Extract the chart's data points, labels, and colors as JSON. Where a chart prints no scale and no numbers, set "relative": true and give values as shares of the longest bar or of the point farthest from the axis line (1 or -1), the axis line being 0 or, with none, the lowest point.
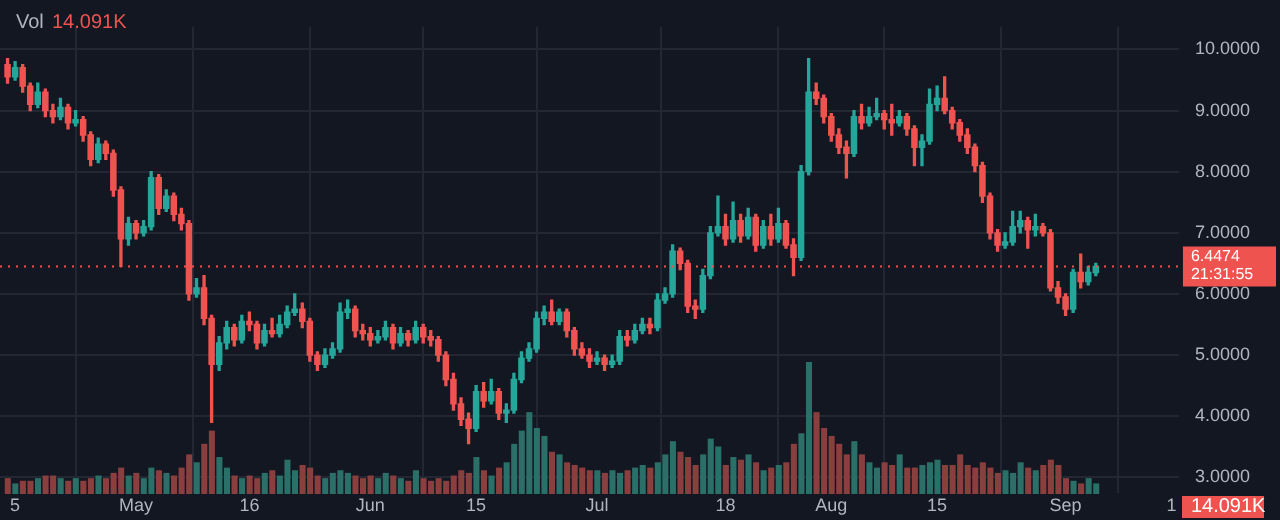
{
  "chart_data": [
    {
      "type": "candlestick",
      "x": [
        "--04-14",
        "--04-15",
        "--04-16",
        "--04-17",
        "--04-18",
        "--04-19",
        "--04-20",
        "--04-21",
        "--04-22",
        "--04-23",
        "--04-24",
        "--04-25",
        "--04-26",
        "--04-27",
        "--04-28",
        "--04-29",
        "--04-30",
        "--05-01",
        "--05-02",
        "--05-03",
        "--05-04",
        "--05-05",
        "--05-06",
        "--05-07",
        "--05-08",
        "--05-09",
        "--05-10",
        "--05-11",
        "--05-12",
        "--05-13",
        "--05-14",
        "--05-15",
        "--05-16",
        "--05-17",
        "--05-18",
        "--05-19",
        "--05-20",
        "--05-21",
        "--05-22",
        "--05-23",
        "--05-24",
        "--05-25",
        "--05-26",
        "--05-27",
        "--05-28",
        "--05-29",
        "--05-30",
        "--05-31",
        "--06-01",
        "--06-02",
        "--06-03",
        "--06-04",
        "--06-05",
        "--06-06",
        "--06-07",
        "--06-08",
        "--06-09",
        "--06-10",
        "--06-11",
        "--06-12",
        "--06-13",
        "--06-14",
        "--06-15",
        "--06-16",
        "--06-17",
        "--06-18",
        "--06-19",
        "--06-20",
        "--06-21",
        "--06-22",
        "--06-23",
        "--06-24",
        "--06-25",
        "--06-26",
        "--06-27",
        "--06-28",
        "--06-29",
        "--06-30",
        "--07-01",
        "--07-02",
        "--07-03",
        "--07-04",
        "--07-05",
        "--07-06",
        "--07-07",
        "--07-08",
        "--07-09",
        "--07-10",
        "--07-11",
        "--07-12",
        "--07-13",
        "--07-14",
        "--07-15",
        "--07-16",
        "--07-17",
        "--07-18",
        "--07-19",
        "--07-20",
        "--07-21",
        "--07-22",
        "--07-23",
        "--07-24",
        "--07-25",
        "--07-26",
        "--07-27",
        "--07-28",
        "--07-29",
        "--07-30",
        "--07-31",
        "--08-01",
        "--08-02",
        "--08-03",
        "--08-04",
        "--08-05",
        "--08-06",
        "--08-07",
        "--08-08",
        "--08-09",
        "--08-10",
        "--08-11",
        "--08-12",
        "--08-13",
        "--08-14",
        "--08-15",
        "--08-16",
        "--08-17",
        "--08-18",
        "--08-19",
        "--08-20",
        "--08-21",
        "--08-22",
        "--08-23",
        "--08-24",
        "--08-25",
        "--08-26",
        "--08-27",
        "--08-28",
        "--08-29",
        "--08-30",
        "--08-31",
        "--09-01",
        "--09-02",
        "--09-03",
        "--09-04",
        "--09-05"
      ],
      "ohlc": [
        [
          9.75,
          9.85,
          9.45,
          9.55
        ],
        [
          9.55,
          9.8,
          9.5,
          9.7
        ],
        [
          9.7,
          9.75,
          9.3,
          9.4
        ],
        [
          9.4,
          9.45,
          9.0,
          9.1
        ],
        [
          9.1,
          9.45,
          9.05,
          9.3
        ],
        [
          9.3,
          9.35,
          8.9,
          9.0
        ],
        [
          9.0,
          9.1,
          8.8,
          8.9
        ],
        [
          8.9,
          9.2,
          8.85,
          9.05
        ],
        [
          9.05,
          9.1,
          8.7,
          8.8
        ],
        [
          8.8,
          9.0,
          8.75,
          8.85
        ],
        [
          8.85,
          8.9,
          8.5,
          8.6
        ],
        [
          8.6,
          8.65,
          8.1,
          8.2
        ],
        [
          8.2,
          8.55,
          8.15,
          8.45
        ],
        [
          8.45,
          8.5,
          8.2,
          8.3
        ],
        [
          8.3,
          8.35,
          7.6,
          7.7
        ],
        [
          7.7,
          7.75,
          6.45,
          6.9
        ],
        [
          6.9,
          7.25,
          6.8,
          7.15
        ],
        [
          7.15,
          7.2,
          6.9,
          7.0
        ],
        [
          7.0,
          7.2,
          6.95,
          7.1
        ],
        [
          7.1,
          8.0,
          7.05,
          7.9
        ],
        [
          7.9,
          7.95,
          7.3,
          7.4
        ],
        [
          7.4,
          7.7,
          7.35,
          7.6
        ],
        [
          7.6,
          7.65,
          7.2,
          7.3
        ],
        [
          7.3,
          7.4,
          7.05,
          7.15
        ],
        [
          7.15,
          7.2,
          5.9,
          6.0
        ],
        [
          6.0,
          6.25,
          5.95,
          6.1
        ],
        [
          6.1,
          6.3,
          5.5,
          5.6
        ],
        [
          5.6,
          5.65,
          3.9,
          4.85
        ],
        [
          4.85,
          5.3,
          4.75,
          5.2
        ],
        [
          5.2,
          5.55,
          5.1,
          5.45
        ],
        [
          5.45,
          5.5,
          5.15,
          5.25
        ],
        [
          5.25,
          5.65,
          5.2,
          5.55
        ],
        [
          5.55,
          5.7,
          5.4,
          5.5
        ],
        [
          5.5,
          5.55,
          5.1,
          5.2
        ],
        [
          5.2,
          5.5,
          5.15,
          5.4
        ],
        [
          5.4,
          5.6,
          5.3,
          5.35
        ],
        [
          5.35,
          5.65,
          5.3,
          5.5
        ],
        [
          5.5,
          5.8,
          5.45,
          5.7
        ],
        [
          5.7,
          6.0,
          5.65,
          5.75
        ],
        [
          5.75,
          5.85,
          5.45,
          5.55
        ],
        [
          5.55,
          5.6,
          4.9,
          5.0
        ],
        [
          5.0,
          5.05,
          4.75,
          4.85
        ],
        [
          4.85,
          5.1,
          4.8,
          5.0
        ],
        [
          5.0,
          5.2,
          4.95,
          5.1
        ],
        [
          5.1,
          5.85,
          5.05,
          5.7
        ],
        [
          5.7,
          5.9,
          5.6,
          5.75
        ],
        [
          5.75,
          5.8,
          5.3,
          5.4
        ],
        [
          5.4,
          5.5,
          5.25,
          5.35
        ],
        [
          5.35,
          5.45,
          5.15,
          5.25
        ],
        [
          5.25,
          5.4,
          5.2,
          5.3
        ],
        [
          5.3,
          5.55,
          5.25,
          5.45
        ],
        [
          5.45,
          5.5,
          5.1,
          5.2
        ],
        [
          5.2,
          5.45,
          5.15,
          5.35
        ],
        [
          5.35,
          5.4,
          5.15,
          5.25
        ],
        [
          5.25,
          5.55,
          5.2,
          5.45
        ],
        [
          5.45,
          5.5,
          5.2,
          5.3
        ],
        [
          5.3,
          5.4,
          5.15,
          5.25
        ],
        [
          5.25,
          5.3,
          4.9,
          5.0
        ],
        [
          5.0,
          5.05,
          4.5,
          4.6
        ],
        [
          4.6,
          4.7,
          4.1,
          4.2
        ],
        [
          4.2,
          4.3,
          3.85,
          3.95
        ],
        [
          3.95,
          4.05,
          3.55,
          3.8
        ],
        [
          3.8,
          4.5,
          3.75,
          4.4
        ],
        [
          4.4,
          4.55,
          4.15,
          4.25
        ],
        [
          4.25,
          4.6,
          4.2,
          4.4
        ],
        [
          4.4,
          4.45,
          3.95,
          4.05
        ],
        [
          4.05,
          4.2,
          3.9,
          4.1
        ],
        [
          4.1,
          4.7,
          4.05,
          4.6
        ],
        [
          4.6,
          5.05,
          4.55,
          4.95
        ],
        [
          4.95,
          5.2,
          4.9,
          5.1
        ],
        [
          5.1,
          5.7,
          5.05,
          5.6
        ],
        [
          5.6,
          5.8,
          5.5,
          5.7
        ],
        [
          5.7,
          5.9,
          5.5,
          5.55
        ],
        [
          5.55,
          5.75,
          5.5,
          5.7
        ],
        [
          5.7,
          5.75,
          5.3,
          5.4
        ],
        [
          5.4,
          5.45,
          5.0,
          5.1
        ],
        [
          5.1,
          5.2,
          4.95,
          5.0
        ],
        [
          5.0,
          5.1,
          4.8,
          4.9
        ],
        [
          4.9,
          5.05,
          4.85,
          4.95
        ],
        [
          4.95,
          5.0,
          4.75,
          4.85
        ],
        [
          4.85,
          5.0,
          4.8,
          4.9
        ],
        [
          4.9,
          5.4,
          4.85,
          5.3
        ],
        [
          5.3,
          5.4,
          5.15,
          5.25
        ],
        [
          5.25,
          5.5,
          5.2,
          5.4
        ],
        [
          5.4,
          5.6,
          5.35,
          5.5
        ],
        [
          5.5,
          5.6,
          5.35,
          5.45
        ],
        [
          5.45,
          6.0,
          5.4,
          5.9
        ],
        [
          5.9,
          6.1,
          5.85,
          6.0
        ],
        [
          6.0,
          6.8,
          5.95,
          6.7
        ],
        [
          6.7,
          6.75,
          6.4,
          6.5
        ],
        [
          6.5,
          6.55,
          5.7,
          5.8
        ],
        [
          5.8,
          5.9,
          5.6,
          5.75
        ],
        [
          5.75,
          6.4,
          5.7,
          6.3
        ],
        [
          6.3,
          7.1,
          6.25,
          7.0
        ],
        [
          7.0,
          7.6,
          6.95,
          7.1
        ],
        [
          7.1,
          7.3,
          6.8,
          6.9
        ],
        [
          6.9,
          7.5,
          6.85,
          7.2
        ],
        [
          7.2,
          7.3,
          6.85,
          6.95
        ],
        [
          6.95,
          7.4,
          6.9,
          7.25
        ],
        [
          7.25,
          7.3,
          6.7,
          6.8
        ],
        [
          6.8,
          7.2,
          6.75,
          7.1
        ],
        [
          7.1,
          7.3,
          6.8,
          6.9
        ],
        [
          6.9,
          7.4,
          6.85,
          7.15
        ],
        [
          7.15,
          7.2,
          6.75,
          6.8
        ],
        [
          6.8,
          6.9,
          6.3,
          6.6
        ],
        [
          6.6,
          8.1,
          6.55,
          8.0
        ],
        [
          8.0,
          9.85,
          7.95,
          9.3
        ],
        [
          9.3,
          9.45,
          9.1,
          9.2
        ],
        [
          9.2,
          9.25,
          8.8,
          8.9
        ],
        [
          8.9,
          8.95,
          8.5,
          8.6
        ],
        [
          8.6,
          8.7,
          8.3,
          8.4
        ],
        [
          8.4,
          8.5,
          7.9,
          8.3
        ],
        [
          8.3,
          9.0,
          8.25,
          8.9
        ],
        [
          8.9,
          9.1,
          8.7,
          8.8
        ],
        [
          8.8,
          9.05,
          8.75,
          8.9
        ],
        [
          8.9,
          9.2,
          8.85,
          8.95
        ],
        [
          8.95,
          9.0,
          8.7,
          8.85
        ],
        [
          8.85,
          9.1,
          8.6,
          8.8
        ],
        [
          8.8,
          9.0,
          8.75,
          8.9
        ],
        [
          8.9,
          8.95,
          8.6,
          8.7
        ],
        [
          8.7,
          8.75,
          8.1,
          8.4
        ],
        [
          8.4,
          8.6,
          8.1,
          8.5
        ],
        [
          8.5,
          9.35,
          8.45,
          9.1
        ],
        [
          9.1,
          9.4,
          9.0,
          9.2
        ],
        [
          9.2,
          9.55,
          8.95,
          9.0
        ],
        [
          9.0,
          9.05,
          8.7,
          8.8
        ],
        [
          8.8,
          8.85,
          8.5,
          8.6
        ],
        [
          8.6,
          8.7,
          8.3,
          8.4
        ],
        [
          8.4,
          8.45,
          8.0,
          8.1
        ],
        [
          8.1,
          8.15,
          7.5,
          7.6
        ],
        [
          7.6,
          7.65,
          6.9,
          7.0
        ],
        [
          7.0,
          7.05,
          6.7,
          6.8
        ],
        [
          6.8,
          7.0,
          6.75,
          6.85
        ],
        [
          6.85,
          7.35,
          6.8,
          7.1
        ],
        [
          7.1,
          7.35,
          7.0,
          7.2
        ],
        [
          7.2,
          7.25,
          6.75,
          7.05
        ],
        [
          7.05,
          7.3,
          6.95,
          7.1
        ],
        [
          7.1,
          7.15,
          6.95,
          7.0
        ],
        [
          7.0,
          7.05,
          6.05,
          6.1
        ],
        [
          6.1,
          6.2,
          5.85,
          5.95
        ],
        [
          5.95,
          6.0,
          5.65,
          5.75
        ],
        [
          5.75,
          6.4,
          5.7,
          6.35
        ],
        [
          6.35,
          6.65,
          6.1,
          6.2
        ],
        [
          6.2,
          6.45,
          6.15,
          6.35
        ],
        [
          6.35,
          6.5,
          6.3,
          6.45
        ]
      ],
      "colors": [
        "#ef5350",
        "#26a69a",
        "#ef5350",
        "#ef5350",
        "#26a69a",
        "#ef5350",
        "#ef5350",
        "#26a69a",
        "#ef5350",
        "#26a69a",
        "#ef5350",
        "#ef5350",
        "#26a69a",
        "#ef5350",
        "#ef5350",
        "#ef5350",
        "#26a69a",
        "#ef5350",
        "#26a69a",
        "#26a69a",
        "#ef5350",
        "#26a69a",
        "#ef5350",
        "#ef5350",
        "#ef5350",
        "#26a69a",
        "#ef5350",
        "#ef5350",
        "#26a69a",
        "#26a69a",
        "#ef5350",
        "#26a69a",
        "#ef5350",
        "#ef5350",
        "#26a69a",
        "#ef5350",
        "#26a69a",
        "#26a69a",
        "#26a69a",
        "#ef5350",
        "#ef5350",
        "#ef5350",
        "#26a69a",
        "#26a69a",
        "#26a69a",
        "#26a69a",
        "#ef5350",
        "#ef5350",
        "#ef5350",
        "#26a69a",
        "#26a69a",
        "#ef5350",
        "#26a69a",
        "#ef5350",
        "#26a69a",
        "#ef5350",
        "#ef5350",
        "#ef5350",
        "#ef5350",
        "#ef5350",
        "#ef5350",
        "#ef5350",
        "#26a69a",
        "#ef5350",
        "#26a69a",
        "#ef5350",
        "#26a69a",
        "#26a69a",
        "#26a69a",
        "#26a69a",
        "#26a69a",
        "#26a69a",
        "#ef5350",
        "#26a69a",
        "#ef5350",
        "#ef5350",
        "#ef5350",
        "#ef5350",
        "#26a69a",
        "#ef5350",
        "#26a69a",
        "#26a69a",
        "#ef5350",
        "#26a69a",
        "#26a69a",
        "#ef5350",
        "#26a69a",
        "#26a69a",
        "#26a69a",
        "#ef5350",
        "#ef5350",
        "#ef5350",
        "#26a69a",
        "#26a69a",
        "#26a69a",
        "#ef5350",
        "#26a69a",
        "#ef5350",
        "#26a69a",
        "#ef5350",
        "#26a69a",
        "#ef5350",
        "#26a69a",
        "#ef5350",
        "#ef5350",
        "#26a69a",
        "#26a69a",
        "#ef5350",
        "#ef5350",
        "#ef5350",
        "#ef5350",
        "#ef5350",
        "#26a69a",
        "#ef5350",
        "#26a69a",
        "#26a69a",
        "#ef5350",
        "#ef5350",
        "#26a69a",
        "#ef5350",
        "#ef5350",
        "#26a69a",
        "#26a69a",
        "#26a69a",
        "#ef5350",
        "#ef5350",
        "#ef5350",
        "#ef5350",
        "#ef5350",
        "#ef5350",
        "#ef5350",
        "#ef5350",
        "#26a69a",
        "#26a69a",
        "#26a69a",
        "#ef5350",
        "#26a69a",
        "#ef5350",
        "#ef5350",
        "#ef5350",
        "#ef5350",
        "#26a69a",
        "#ef5350",
        "#26a69a",
        "#26a69a"
      ],
      "xlim": [
        "--04-13",
        "--09-16"
      ],
      "xticks": [
        {
          "value": "--04-15",
          "label": "5"
        },
        {
          "value": "--05-01",
          "label": "May"
        },
        {
          "value": "--05-16",
          "label": "16"
        },
        {
          "value": "--06-01",
          "label": "Jun"
        },
        {
          "value": "--06-15",
          "label": "15"
        },
        {
          "value": "--07-01",
          "label": "Jul"
        },
        {
          "value": "--07-18",
          "label": "18"
        },
        {
          "value": "--08-01",
          "label": "Aug"
        },
        {
          "value": "--08-15",
          "label": "15"
        },
        {
          "value": "--09-01",
          "label": "Sep"
        },
        {
          "value": "--09-15",
          "label": "1"
        }
      ],
      "ylim": [
        2.74,
        10.37
      ],
      "yticks": [
        {
          "value": 3,
          "label": "3.0000"
        },
        {
          "value": 4,
          "label": "4.0000"
        },
        {
          "value": 5,
          "label": "5.0000"
        },
        {
          "value": 6,
          "label": "6.0000"
        },
        {
          "value": 7,
          "label": "7.0000"
        },
        {
          "value": 8,
          "label": "8.0000"
        },
        {
          "value": 9,
          "label": "9.0000"
        },
        {
          "value": 10,
          "label": "10.0000"
        }
      ],
      "grid": true,
      "legend": false,
      "ref_lines": [
        {
          "axis": "y",
          "value": 6.4474,
          "label": "6.4474",
          "color": "#ef5350",
          "line_style": "dotted"
        }
      ],
      "annotations": [
        "21:31:55"
      ]
    },
    {
      "type": "bar",
      "relative": true,
      "categories": [
        null,
        null,
        null,
        null,
        null,
        null,
        null,
        null,
        null,
        null,
        null,
        null,
        null,
        null,
        null,
        null,
        null,
        null,
        null,
        null,
        null,
        null,
        null,
        null,
        null,
        null,
        null,
        null,
        null,
        null,
        null,
        null,
        null,
        null,
        null,
        null,
        null,
        null,
        null,
        null,
        null,
        null,
        null,
        null,
        null,
        null,
        null,
        null,
        null,
        null,
        null,
        null,
        null,
        null,
        null,
        null,
        null,
        null,
        null,
        null,
        null,
        null,
        null,
        null,
        null,
        null,
        null,
        null,
        null,
        null,
        null,
        null,
        null,
        null,
        null,
        null,
        null,
        null,
        null,
        null,
        null,
        null,
        null,
        null,
        null,
        null,
        null,
        null,
        null,
        null,
        null,
        null,
        null,
        null,
        null,
        null,
        null,
        null,
        null,
        null,
        null,
        null,
        null,
        null,
        null,
        null,
        null,
        null,
        null,
        null,
        null,
        null,
        null,
        null,
        null,
        null,
        null,
        null,
        null,
        null,
        null,
        null,
        null,
        null,
        null,
        null,
        null,
        null,
        null,
        null,
        null,
        null,
        null,
        null,
        null,
        null,
        null,
        null,
        null,
        null,
        null,
        null,
        null,
        null,
        null
      ],
      "values": [
        0.12,
        0.08,
        0.1,
        0.1,
        0.12,
        0.14,
        0.14,
        0.12,
        0.1,
        0.12,
        0.1,
        0.12,
        0.14,
        0.12,
        0.16,
        0.2,
        0.14,
        0.16,
        0.12,
        0.2,
        0.18,
        0.16,
        0.14,
        0.2,
        0.3,
        0.24,
        0.38,
        0.48,
        0.28,
        0.2,
        0.14,
        0.12,
        0.14,
        0.12,
        0.16,
        0.18,
        0.14,
        0.26,
        0.18,
        0.22,
        0.2,
        0.14,
        0.12,
        0.16,
        0.18,
        0.16,
        0.14,
        0.12,
        0.14,
        0.12,
        0.16,
        0.14,
        0.12,
        0.1,
        0.18,
        0.12,
        0.1,
        0.12,
        0.1,
        0.14,
        0.18,
        0.16,
        0.28,
        0.18,
        0.14,
        0.2,
        0.24,
        0.38,
        0.48,
        0.62,
        0.5,
        0.44,
        0.32,
        0.3,
        0.24,
        0.22,
        0.2,
        0.18,
        0.18,
        0.16,
        0.18,
        0.16,
        0.18,
        0.2,
        0.22,
        0.2,
        0.24,
        0.3,
        0.4,
        0.32,
        0.28,
        0.22,
        0.3,
        0.42,
        0.36,
        0.22,
        0.28,
        0.26,
        0.3,
        0.24,
        0.18,
        0.2,
        0.22,
        0.24,
        0.38,
        0.46,
        1,
        0.62,
        0.5,
        0.44,
        0.38,
        0.3,
        0.4,
        0.3,
        0.24,
        0.2,
        0.24,
        0.22,
        0.3,
        0.2,
        0.2,
        0.22,
        0.24,
        0.26,
        0.22,
        0.22,
        0.3,
        0.22,
        0.2,
        0.24,
        0.2,
        0.16,
        0.18,
        0.16,
        0.24,
        0.2,
        0.18,
        0.22,
        0.26,
        0.22,
        0.12,
        0.1,
        0.08,
        0.12,
        0.08
      ],
      "colors": [
        "#8a3f3f",
        "#2a7068",
        "#8a3f3f",
        "#8a3f3f",
        "#2a7068",
        "#8a3f3f",
        "#8a3f3f",
        "#2a7068",
        "#8a3f3f",
        "#2a7068",
        "#8a3f3f",
        "#8a3f3f",
        "#2a7068",
        "#8a3f3f",
        "#8a3f3f",
        "#8a3f3f",
        "#2a7068",
        "#8a3f3f",
        "#2a7068",
        "#2a7068",
        "#8a3f3f",
        "#2a7068",
        "#8a3f3f",
        "#8a3f3f",
        "#8a3f3f",
        "#2a7068",
        "#8a3f3f",
        "#8a3f3f",
        "#2a7068",
        "#2a7068",
        "#8a3f3f",
        "#2a7068",
        "#8a3f3f",
        "#8a3f3f",
        "#2a7068",
        "#8a3f3f",
        "#2a7068",
        "#2a7068",
        "#2a7068",
        "#8a3f3f",
        "#8a3f3f",
        "#8a3f3f",
        "#2a7068",
        "#2a7068",
        "#2a7068",
        "#2a7068",
        "#8a3f3f",
        "#8a3f3f",
        "#8a3f3f",
        "#2a7068",
        "#2a7068",
        "#8a3f3f",
        "#2a7068",
        "#8a3f3f",
        "#2a7068",
        "#8a3f3f",
        "#8a3f3f",
        "#8a3f3f",
        "#8a3f3f",
        "#8a3f3f",
        "#8a3f3f",
        "#8a3f3f",
        "#2a7068",
        "#8a3f3f",
        "#2a7068",
        "#8a3f3f",
        "#2a7068",
        "#2a7068",
        "#2a7068",
        "#2a7068",
        "#2a7068",
        "#2a7068",
        "#8a3f3f",
        "#2a7068",
        "#8a3f3f",
        "#8a3f3f",
        "#8a3f3f",
        "#8a3f3f",
        "#2a7068",
        "#8a3f3f",
        "#2a7068",
        "#2a7068",
        "#8a3f3f",
        "#2a7068",
        "#2a7068",
        "#8a3f3f",
        "#2a7068",
        "#2a7068",
        "#2a7068",
        "#8a3f3f",
        "#8a3f3f",
        "#8a3f3f",
        "#2a7068",
        "#2a7068",
        "#2a7068",
        "#8a3f3f",
        "#2a7068",
        "#8a3f3f",
        "#2a7068",
        "#8a3f3f",
        "#2a7068",
        "#8a3f3f",
        "#2a7068",
        "#8a3f3f",
        "#8a3f3f",
        "#2a7068",
        "#2a7068",
        "#8a3f3f",
        "#8a3f3f",
        "#8a3f3f",
        "#8a3f3f",
        "#8a3f3f",
        "#2a7068",
        "#8a3f3f",
        "#2a7068",
        "#2a7068",
        "#8a3f3f",
        "#8a3f3f",
        "#2a7068",
        "#8a3f3f",
        "#8a3f3f",
        "#2a7068",
        "#2a7068",
        "#2a7068",
        "#8a3f3f",
        "#8a3f3f",
        "#8a3f3f",
        "#8a3f3f",
        "#8a3f3f",
        "#8a3f3f",
        "#8a3f3f",
        "#8a3f3f",
        "#2a7068",
        "#2a7068",
        "#2a7068",
        "#8a3f3f",
        "#2a7068",
        "#8a3f3f",
        "#8a3f3f",
        "#8a3f3f",
        "#8a3f3f",
        "#2a7068",
        "#8a3f3f",
        "#2a7068",
        "#2a7068"
      ],
      "legend": false,
      "annotations": [
        "Vol",
        "14.091K",
        "14.091K"
      ]
    }
  ]
}
